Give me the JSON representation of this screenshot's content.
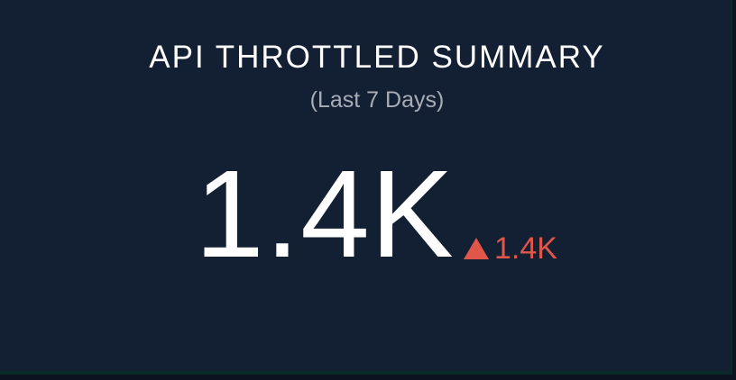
{
  "panel": {
    "title": "API THROTTLED SUMMARY",
    "subtitle": "(Last 7 Days)",
    "value": "1.4K",
    "delta": {
      "icon": "triangle-up-icon",
      "value": "1.4K",
      "direction": "up",
      "color": "#e0574a"
    }
  },
  "colors": {
    "background": "#131f33",
    "text": "#ffffff",
    "muted": "#a8adb6",
    "delta": "#e0574a"
  }
}
